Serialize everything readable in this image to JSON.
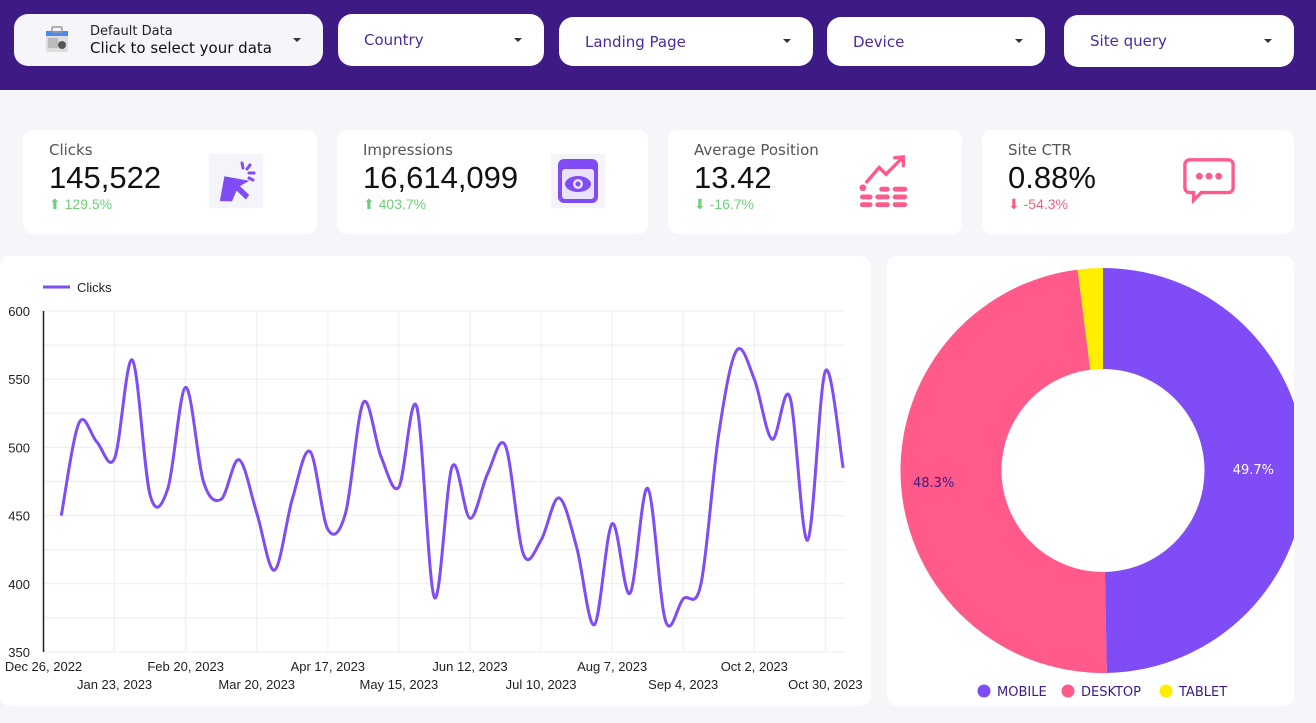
{
  "filters": {
    "data_source": {
      "title": "Default Data",
      "subtitle": "Click to select your data"
    },
    "country": "Country",
    "landing_page": "Landing Page",
    "device": "Device",
    "site_query": "Site query"
  },
  "kpis": [
    {
      "label": "Clicks",
      "value": "145,522",
      "change": "129.5%",
      "direction": "up",
      "change_color": "#6fcf7a",
      "icon": "cursor-click-icon"
    },
    {
      "label": "Impressions",
      "value": "16,614,099",
      "change": "403.7%",
      "direction": "up",
      "change_color": "#6fcf7a",
      "icon": "eye-window-icon"
    },
    {
      "label": "Average Position",
      "value": "13.42",
      "change": "-16.7%",
      "direction": "down",
      "change_color": "#6fcf7a",
      "icon": "trending-up-icon"
    },
    {
      "label": "Site CTR",
      "value": "0.88%",
      "change": "-54.3%",
      "direction": "down",
      "change_color": "#f0627e",
      "icon": "chat-bubble-icon"
    }
  ],
  "colors": {
    "header": "#3d1a84",
    "accent": "#7f4cf5",
    "pink": "#ff5a8a",
    "yellow": "#ffee00"
  },
  "chart_data": [
    {
      "type": "line",
      "legend": [
        "Clicks"
      ],
      "legend_position": "top-left",
      "ylim": [
        350,
        600
      ],
      "yticks": [
        350,
        400,
        450,
        500,
        550,
        600
      ],
      "xtick_labels": [
        "Dec 26, 2022",
        "Jan 23, 2023",
        "Feb 20, 2023",
        "Mar 20, 2023",
        "Apr 17, 2023",
        "May 15, 2023",
        "Jun 12, 2023",
        "Jul 10, 2023",
        "Aug 7, 2023",
        "Sep 4, 2023",
        "Oct 2, 2023",
        "Oct 30, 2023"
      ],
      "grid": true,
      "series": [
        {
          "name": "Clicks",
          "color": "#7f4cf5",
          "x_start": "Jan 2, 2023",
          "interval": "weekly",
          "values": [
            450,
            518,
            504,
            492,
            564,
            465,
            470,
            544,
            475,
            462,
            491,
            452,
            410,
            462,
            497,
            440,
            452,
            533,
            493,
            471,
            530,
            390,
            486,
            448,
            481,
            501,
            422,
            432,
            463,
            427,
            370,
            444,
            393,
            470,
            373,
            389,
            400,
            510,
            571,
            550,
            506,
            537,
            432,
            556,
            485
          ]
        }
      ]
    },
    {
      "type": "pie",
      "donut": true,
      "legend_position": "bottom",
      "slices": [
        {
          "label": "MOBILE",
          "value": 49.7,
          "display": "49.7%",
          "color": "#7f4cf5"
        },
        {
          "label": "DESKTOP",
          "value": 48.3,
          "display": "48.3%",
          "color": "#ff5a8a"
        },
        {
          "label": "TABLET",
          "value": 2.0,
          "color": "#ffee00"
        }
      ]
    }
  ]
}
